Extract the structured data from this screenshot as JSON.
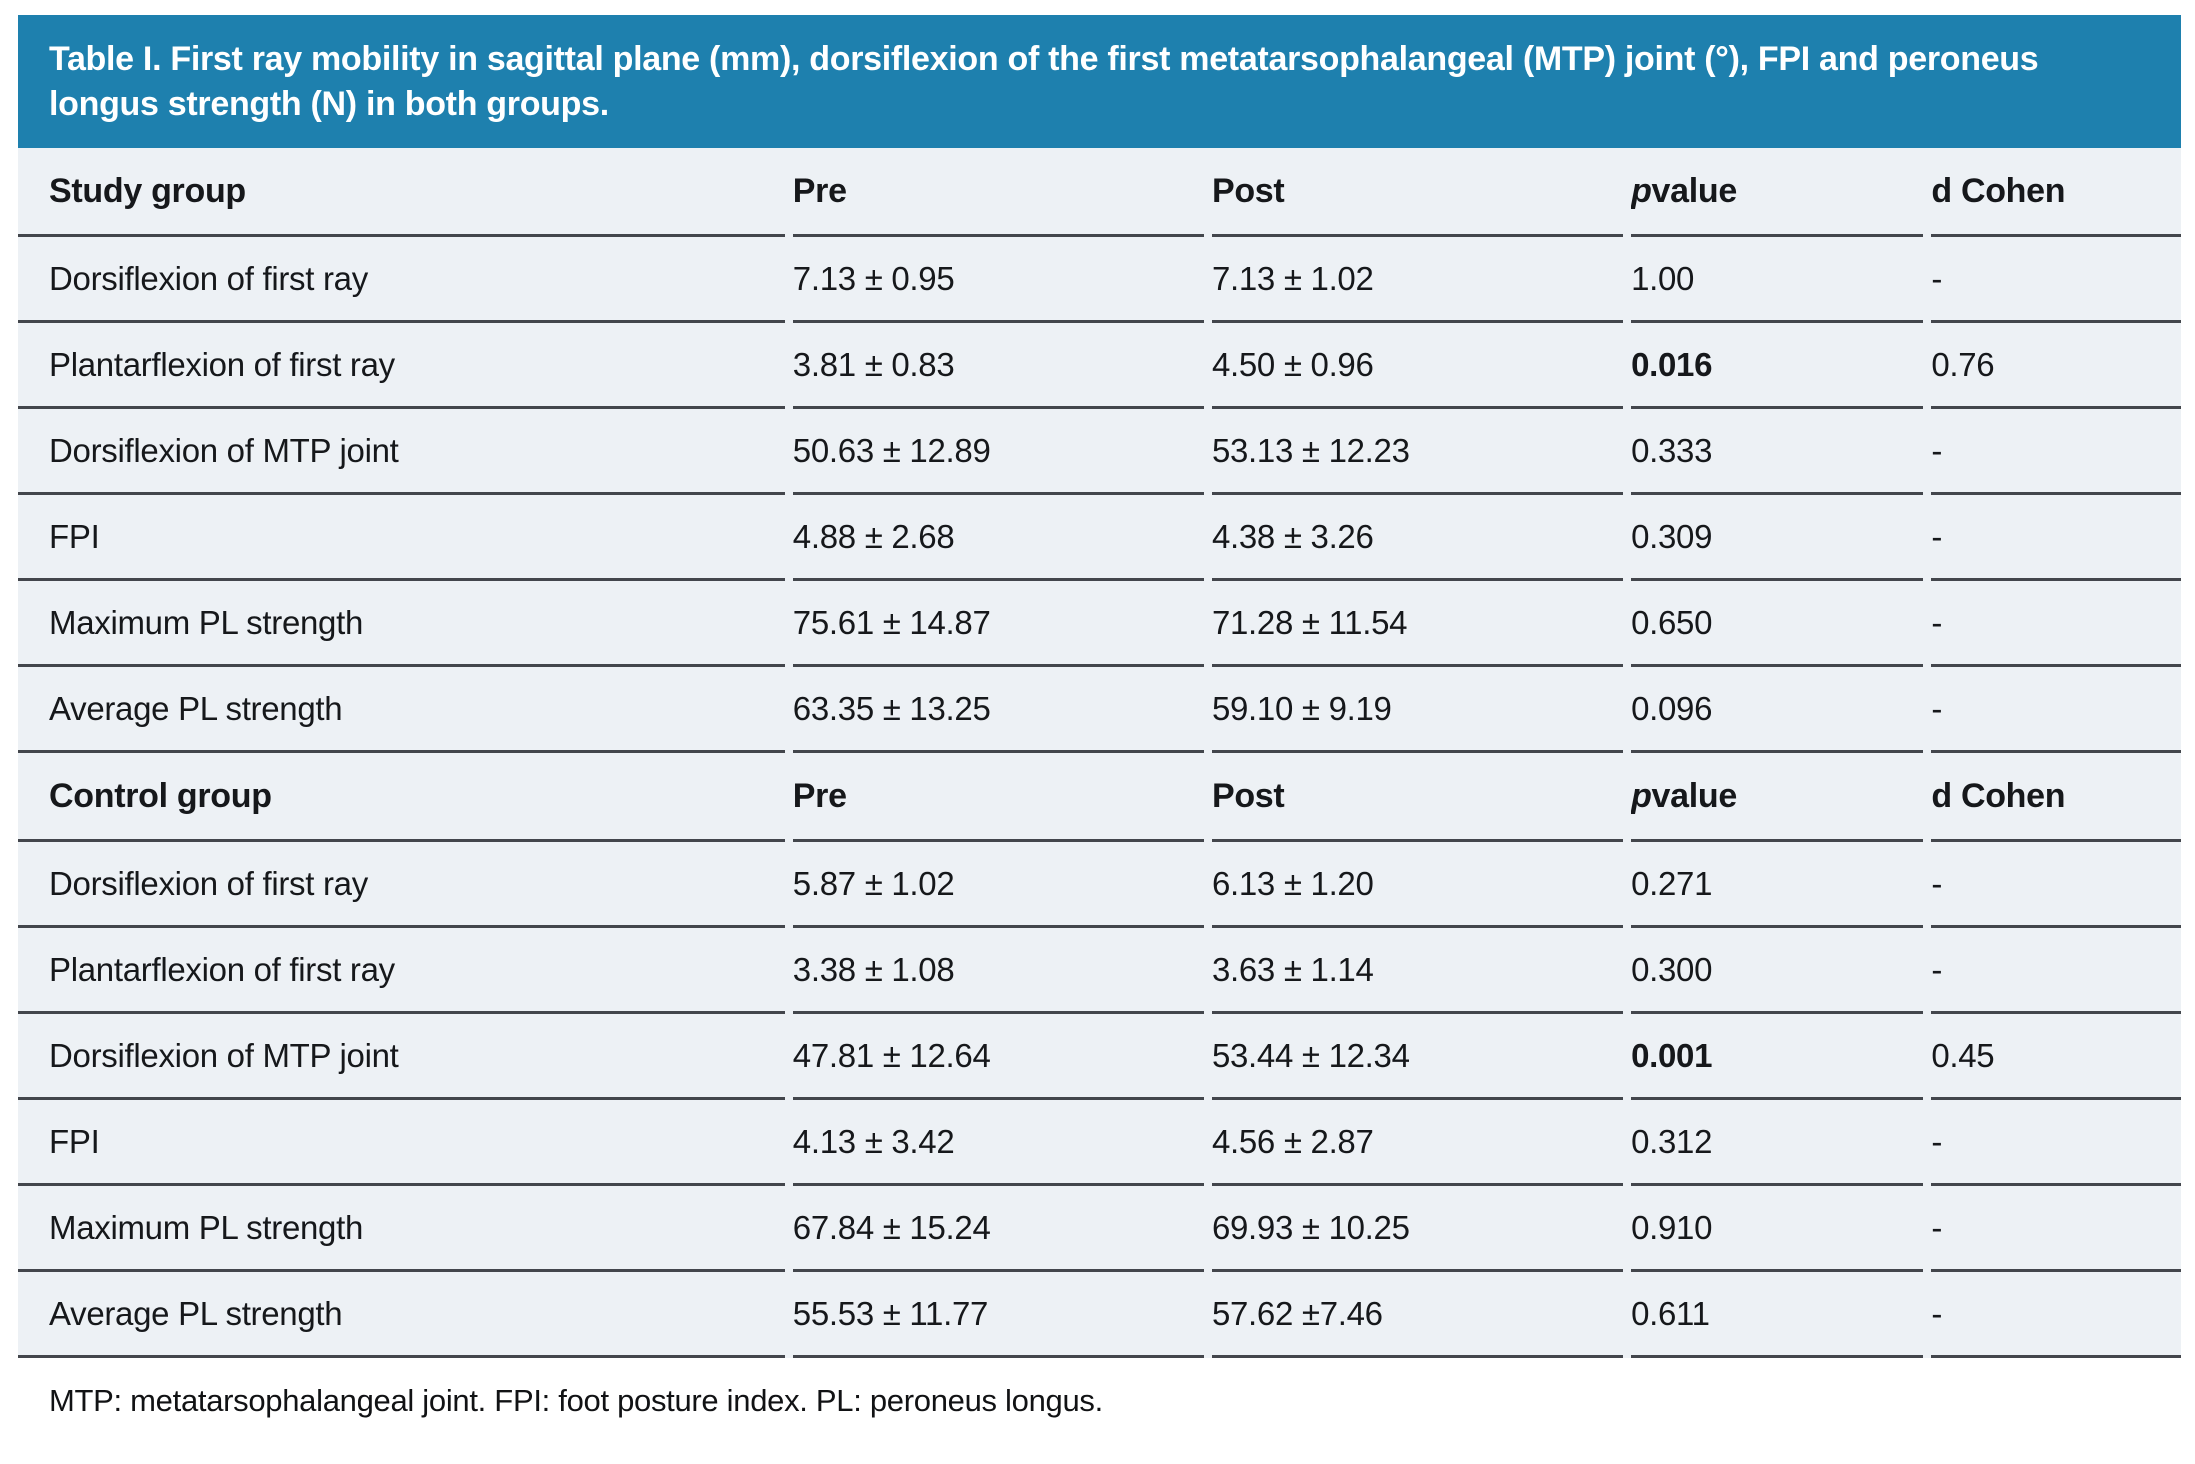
{
  "title": "Table I. First ray mobility in sagittal plane (mm), dorsiflexion of the first metatarsophalangeal (MTP) joint (°), FPI and peroneus longus strength (N) in both groups.",
  "colors": {
    "header_bg": "#1e80ae",
    "row_bg": "#edf1f5",
    "border": "#43464c"
  },
  "table": {
    "sections": [
      {
        "group_label": "Study group",
        "columns": {
          "pre": "Pre",
          "post": "Post",
          "p_symbol": "p",
          "p_rest": " value",
          "d_cohen": "d Cohen"
        },
        "rows": [
          {
            "label": "Dorsiflexion of first ray",
            "pre": "7.13 ± 0.95",
            "post": "7.13 ± 1.02",
            "p": "1.00",
            "p_bold": false,
            "d": "-"
          },
          {
            "label": "Plantarflexion of first ray",
            "pre": "3.81 ± 0.83",
            "post": "4.50 ± 0.96",
            "p": "0.016",
            "p_bold": true,
            "d": "0.76"
          },
          {
            "label": "Dorsiflexion of MTP joint",
            "pre": "50.63 ± 12.89",
            "post": "53.13 ± 12.23",
            "p": "0.333",
            "p_bold": false,
            "d": "-"
          },
          {
            "label": "FPI",
            "pre": "4.88 ± 2.68",
            "post": "4.38 ± 3.26",
            "p": "0.309",
            "p_bold": false,
            "d": "-"
          },
          {
            "label": "Maximum PL strength",
            "pre": "75.61 ± 14.87",
            "post": "71.28 ± 11.54",
            "p": "0.650",
            "p_bold": false,
            "d": "-"
          },
          {
            "label": "Average PL strength",
            "pre": "63.35 ± 13.25",
            "post": "59.10 ± 9.19",
            "p": "0.096",
            "p_bold": false,
            "d": "-"
          }
        ]
      },
      {
        "group_label": "Control group",
        "columns": {
          "pre": "Pre",
          "post": "Post",
          "p_symbol": "p",
          "p_rest": " value",
          "d_cohen": "d Cohen"
        },
        "rows": [
          {
            "label": "Dorsiflexion of first ray",
            "pre": "5.87 ± 1.02",
            "post": "6.13 ± 1.20",
            "p": "0.271",
            "p_bold": false,
            "d": "-"
          },
          {
            "label": "Plantarflexion of first ray",
            "pre": "3.38 ± 1.08",
            "post": "3.63 ± 1.14",
            "p": "0.300",
            "p_bold": false,
            "d": "-"
          },
          {
            "label": "Dorsiflexion of MTP joint",
            "pre": "47.81 ± 12.64",
            "post": "53.44 ± 12.34",
            "p": "0.001",
            "p_bold": true,
            "d": "0.45"
          },
          {
            "label": "FPI",
            "pre": "4.13 ± 3.42",
            "post": "4.56 ± 2.87",
            "p": "0.312",
            "p_bold": false,
            "d": "-"
          },
          {
            "label": "Maximum PL strength",
            "pre": "67.84 ± 15.24",
            "post": "69.93 ± 10.25",
            "p": "0.910",
            "p_bold": false,
            "d": "-"
          },
          {
            "label": "Average PL strength",
            "pre": "55.53 ± 11.77",
            "post": "57.62 ±7.46",
            "p": "0.611",
            "p_bold": false,
            "d": "-"
          }
        ]
      }
    ]
  },
  "footnote": "MTP: metatarsophalangeal joint. FPI: foot posture index. PL: peroneus longus."
}
